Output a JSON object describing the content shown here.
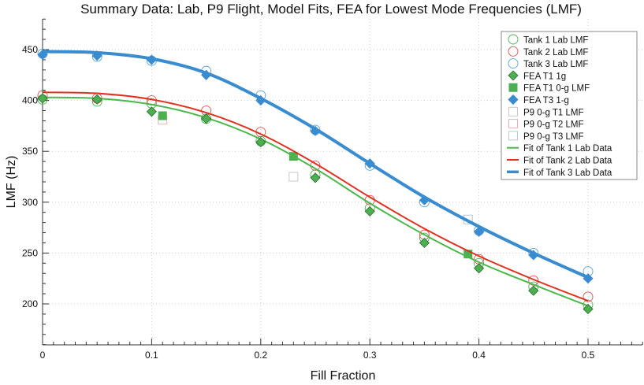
{
  "chart_data": {
    "type": "scatter",
    "title": "Summary Data: Lab, P9 Flight, Model Fits, FEA for Lowest Mode Frequencies (LMF)",
    "xlabel": "Fill Fraction",
    "ylabel": "LMF (Hz)",
    "xlim": [
      0,
      0.55
    ],
    "ylim": [
      160,
      480
    ],
    "xticks": [
      0,
      0.1,
      0.2,
      0.3,
      0.4,
      0.5
    ],
    "xtick_labels": [
      "0",
      "0.1",
      "0.2",
      "0.3",
      "0.4",
      "0.5"
    ],
    "yticks": [
      200,
      250,
      300,
      350,
      400,
      450
    ],
    "ytick_labels": [
      "200",
      "250",
      "300",
      "350",
      "400",
      "450"
    ],
    "grid": true,
    "legend_position": "top-right",
    "series": [
      {
        "name": "Tank 1 Lab LMF",
        "marker": "circle-open",
        "color": "#4caf50",
        "x": [
          0,
          0.05,
          0.1,
          0.15,
          0.2,
          0.25,
          0.3,
          0.35,
          0.4,
          0.45,
          0.5
        ],
        "y": [
          401,
          399,
          397,
          382,
          360,
          327,
          294,
          265,
          240,
          217,
          199
        ]
      },
      {
        "name": "Tank 2 Lab LMF",
        "marker": "circle-open",
        "color": "#e05050",
        "x": [
          0,
          0.05,
          0.1,
          0.15,
          0.2,
          0.25,
          0.3,
          0.35,
          0.4,
          0.45,
          0.5
        ],
        "y": [
          405,
          402,
          400,
          390,
          369,
          336,
          302,
          268,
          244,
          223,
          207
        ]
      },
      {
        "name": "Tank 3 Lab LMF",
        "marker": "circle-open",
        "color": "#5aa0d8",
        "x": [
          0,
          0.05,
          0.1,
          0.15,
          0.2,
          0.25,
          0.3,
          0.35,
          0.4,
          0.45,
          0.5
        ],
        "y": [
          446,
          443,
          439,
          429,
          405,
          371,
          336,
          300,
          272,
          250,
          232
        ]
      },
      {
        "name": "FEA T1 1g",
        "marker": "diamond",
        "color": "#4caf50",
        "x": [
          0,
          0.05,
          0.1,
          0.15,
          0.2,
          0.25,
          0.3,
          0.35,
          0.4,
          0.45,
          0.5
        ],
        "y": [
          402,
          401,
          389,
          382,
          359,
          324,
          291,
          260,
          235,
          213,
          195
        ]
      },
      {
        "name": "FEA T1 0-g LMF",
        "marker": "square",
        "color": "#4caf50",
        "x": [
          0.11,
          0.23,
          0.39
        ],
        "y": [
          385,
          345,
          249
        ]
      },
      {
        "name": "FEA T3 1-g",
        "marker": "diamond",
        "color": "#3a8cd0",
        "x": [
          0,
          0.05,
          0.1,
          0.15,
          0.2,
          0.25,
          0.3,
          0.35,
          0.4,
          0.45,
          0.5
        ],
        "y": [
          445,
          444,
          440,
          425,
          400,
          370,
          338,
          302,
          271,
          248,
          225
        ]
      },
      {
        "name": "P9 0-g T1 LMF",
        "marker": "square-open",
        "color": "#c8c8c8",
        "x": [
          0.23
        ],
        "y": [
          325
        ]
      },
      {
        "name": "P9 0-g T2 LMF",
        "marker": "square-open",
        "color": "#e8b0b0",
        "x": [
          0.11
        ],
        "y": [
          381
        ]
      },
      {
        "name": "P9 0-g T3 LMF",
        "marker": "square-open",
        "color": "#b8c8d8",
        "x": [
          0.39
        ],
        "y": [
          283
        ]
      },
      {
        "name": "Fit of Tank 1 Lab Data",
        "marker": "line",
        "color": "#4cb84c",
        "x": [
          0,
          0.05,
          0.1,
          0.15,
          0.2,
          0.25,
          0.3,
          0.35,
          0.4,
          0.45,
          0.5
        ],
        "y": [
          403,
          402,
          396,
          383,
          362,
          333,
          299,
          268,
          241,
          219,
          198
        ]
      },
      {
        "name": "Fit of Tank 2 Lab Data",
        "marker": "line",
        "color": "#e03020",
        "x": [
          0,
          0.05,
          0.1,
          0.15,
          0.2,
          0.25,
          0.3,
          0.35,
          0.4,
          0.45,
          0.5
        ],
        "y": [
          408,
          407,
          401,
          388,
          367,
          338,
          305,
          274,
          247,
          224,
          203
        ]
      },
      {
        "name": "Fit of Tank 3 Lab Data",
        "marker": "line-thick",
        "color": "#3a8cd0",
        "x": [
          0,
          0.05,
          0.1,
          0.15,
          0.2,
          0.25,
          0.3,
          0.35,
          0.4,
          0.45,
          0.5
        ],
        "y": [
          448,
          447,
          441,
          427,
          402,
          372,
          338,
          305,
          276,
          250,
          226
        ]
      }
    ]
  }
}
